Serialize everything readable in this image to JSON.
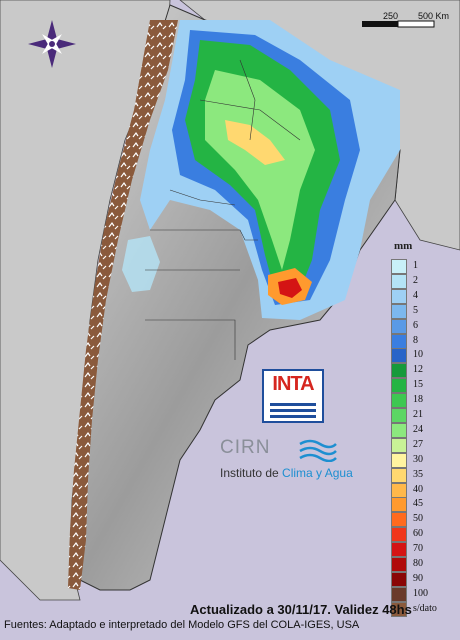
{
  "map": {
    "title": "",
    "legend": {
      "unit": "mm",
      "items": [
        {
          "label": "1",
          "color": "#c8f0f8"
        },
        {
          "label": "2",
          "color": "#b4e4f6"
        },
        {
          "label": "4",
          "color": "#9ed0f4"
        },
        {
          "label": "5",
          "color": "#7cb8ee"
        },
        {
          "label": "6",
          "color": "#5a9ae6"
        },
        {
          "label": "8",
          "color": "#3a7ee0"
        },
        {
          "label": "10",
          "color": "#2864c8"
        },
        {
          "label": "12",
          "color": "#169a3a"
        },
        {
          "label": "15",
          "color": "#24b444"
        },
        {
          "label": "18",
          "color": "#3ec852"
        },
        {
          "label": "21",
          "color": "#5cd664"
        },
        {
          "label": "24",
          "color": "#8ce87e"
        },
        {
          "label": "27",
          "color": "#c8f296"
        },
        {
          "label": "30",
          "color": "#fff4a0"
        },
        {
          "label": "35",
          "color": "#ffd870"
        },
        {
          "label": "40",
          "color": "#ffb84a"
        },
        {
          "label": "45",
          "color": "#ff9a2e"
        },
        {
          "label": "50",
          "color": "#ff6a1e"
        },
        {
          "label": "60",
          "color": "#f0361a"
        },
        {
          "label": "70",
          "color": "#d41414"
        },
        {
          "label": "80",
          "color": "#b00a0a"
        },
        {
          "label": "90",
          "color": "#8a0606"
        },
        {
          "label": "100",
          "color": "#6a3a2a"
        },
        {
          "label": "s/dato",
          "color": "#8a5a3c"
        }
      ]
    },
    "scale": {
      "label_mid": "250",
      "label_end": "500 Km"
    },
    "colors": {
      "background": "#c9c4dc",
      "land": "#c8c8c8",
      "compass": "#4a2a7a"
    }
  },
  "logos": {
    "inta_text": "INTA",
    "cirn_text": "CIRN",
    "institute_prefix": "Instituto de ",
    "institute_highlight": "Clima y Agua"
  },
  "footer": {
    "updated": "Actualizado a 30/11/17. Validez 48hs",
    "sources": "Fuentes: Adaptado e interpretado del Modelo GFS del COLA-IGES, USA"
  }
}
